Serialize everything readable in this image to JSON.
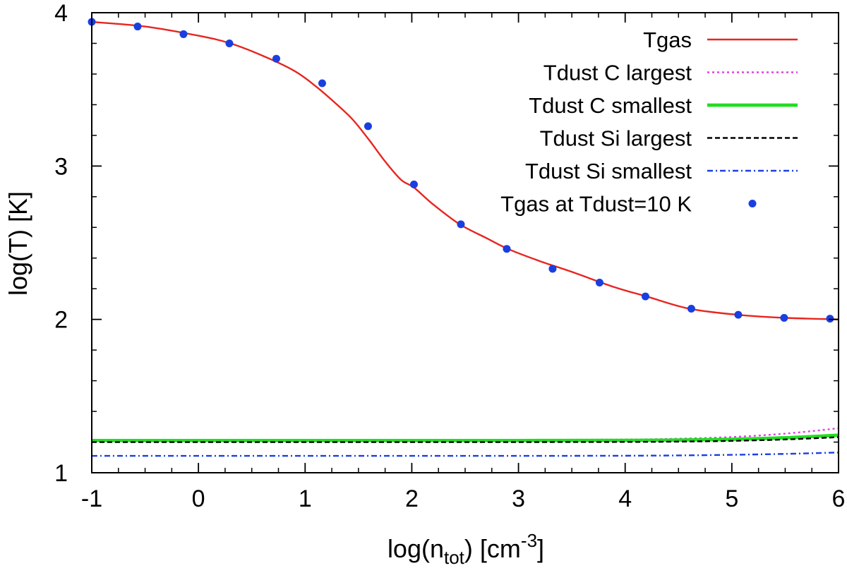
{
  "chart_data": {
    "type": "line",
    "title": "",
    "xlabel": {
      "prefix": "log(n",
      "sub": "tot",
      "mid": ") [cm",
      "sup": "-3",
      "suffix": "]"
    },
    "ylabel": "log(T) [K]",
    "xlim": [
      -1,
      6
    ],
    "ylim": [
      1,
      4
    ],
    "xticks": [
      -1,
      0,
      1,
      2,
      3,
      4,
      5,
      6
    ],
    "yticks": [
      1,
      2,
      3,
      4
    ],
    "xtick_labels": [
      "-1",
      "0",
      "1",
      "2",
      "3",
      "4",
      "5",
      "6"
    ],
    "ytick_labels": [
      "1",
      "2",
      "3",
      "4"
    ],
    "minor_xticks_per_major": 4,
    "minor_yticks_per_major": 5,
    "grid": false,
    "legend_position": "top-right",
    "series": [
      {
        "name": "Tgas",
        "style": "solid",
        "color": "#e8251f",
        "x": [
          -1.0,
          -0.5,
          0.0,
          0.3,
          0.6,
          0.9,
          1.1,
          1.3,
          1.45,
          1.6,
          1.75,
          1.9,
          2.02,
          2.2,
          2.45,
          2.7,
          2.9,
          3.2,
          3.5,
          3.9,
          4.2,
          4.6,
          5.06,
          5.5,
          6.0
        ],
        "y": [
          3.94,
          3.91,
          3.85,
          3.8,
          3.72,
          3.62,
          3.52,
          3.4,
          3.3,
          3.17,
          3.03,
          2.91,
          2.86,
          2.75,
          2.62,
          2.53,
          2.46,
          2.38,
          2.31,
          2.21,
          2.15,
          2.07,
          2.03,
          2.01,
          2.0
        ]
      },
      {
        "name": "Tdust C largest",
        "style": "dotted",
        "color": "#e040e0",
        "x": [
          -1,
          0,
          1,
          2,
          3,
          4,
          4.5,
          5,
          5.5,
          6
        ],
        "y": [
          1.215,
          1.215,
          1.215,
          1.215,
          1.215,
          1.217,
          1.222,
          1.233,
          1.255,
          1.29
        ]
      },
      {
        "name": "Tdust C smallest",
        "style": "thick",
        "color": "#22dd22",
        "x": [
          -1,
          0,
          1,
          2,
          3,
          4,
          4.5,
          5,
          5.5,
          6
        ],
        "y": [
          1.21,
          1.21,
          1.21,
          1.21,
          1.21,
          1.211,
          1.213,
          1.218,
          1.228,
          1.245
        ]
      },
      {
        "name": "Tdust Si largest",
        "style": "dashed",
        "color": "#000000",
        "x": [
          -1,
          0,
          1,
          2,
          3,
          4,
          4.5,
          5,
          5.5,
          6
        ],
        "y": [
          1.2,
          1.2,
          1.2,
          1.2,
          1.2,
          1.201,
          1.203,
          1.208,
          1.217,
          1.232
        ]
      },
      {
        "name": "Tdust Si smallest",
        "style": "dashdot",
        "color": "#1a3fe0",
        "x": [
          -1,
          0,
          1,
          2,
          3,
          4,
          4.5,
          5,
          5.5,
          6
        ],
        "y": [
          1.11,
          1.11,
          1.11,
          1.11,
          1.11,
          1.111,
          1.113,
          1.117,
          1.123,
          1.132
        ]
      },
      {
        "name": "Tgas at Tdust=10 K",
        "style": "points",
        "color": "#1a3fe0",
        "x": [
          -1.0,
          -0.57,
          -0.14,
          0.29,
          0.73,
          1.16,
          1.59,
          2.02,
          2.46,
          2.89,
          3.32,
          3.76,
          4.19,
          4.62,
          5.06,
          5.49,
          5.92
        ],
        "y": [
          3.94,
          3.91,
          3.86,
          3.8,
          3.7,
          3.54,
          3.26,
          2.88,
          2.62,
          2.46,
          2.33,
          2.24,
          2.15,
          2.07,
          2.03,
          2.01,
          2.005
        ]
      }
    ]
  }
}
